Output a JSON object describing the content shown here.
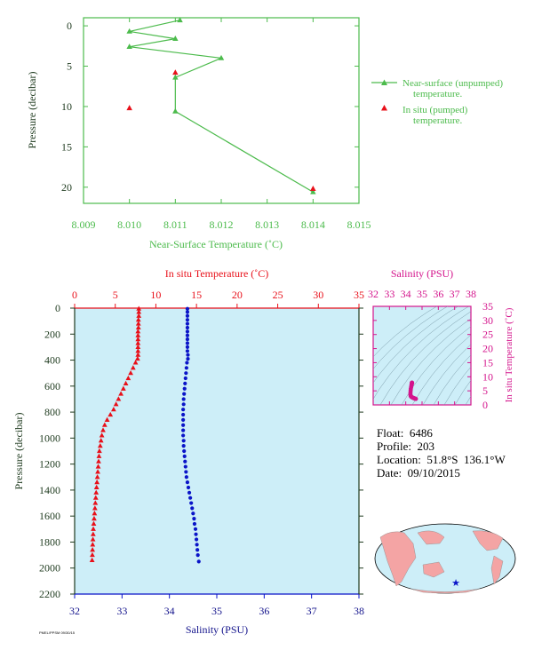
{
  "colors": {
    "green": "#4cbb4c",
    "red": "#e8101a",
    "blue": "#0a14c8",
    "magenta": "#d4148c",
    "axis_dark": "#1e3a1e",
    "bg_light_blue": "#cdeef8",
    "navy": "#14148c"
  },
  "float_info": {
    "float": "Float:  6486",
    "profile": "Profile:  203",
    "location": "Location:  51.8°S  136.1°W",
    "date": "Date:  09/10/2015"
  },
  "credit": "PMEL/PPSM 09/30/15",
  "chart_data": [
    {
      "id": "near-surface",
      "type": "line",
      "xlabel": "Near-Surface Temperature (˚C)",
      "ylabel": "Pressure (decibar)",
      "xlim": [
        8.009,
        8.015
      ],
      "ylim": [
        22,
        -1
      ],
      "xticks": [
        8.009,
        8.01,
        8.011,
        8.012,
        8.013,
        8.014,
        8.015
      ],
      "xtick_labels": [
        "8.009",
        "8.010",
        "8.011",
        "8.012",
        "8.013",
        "8.014",
        "8.015"
      ],
      "yticks": [
        0,
        5,
        10,
        15,
        20
      ],
      "ytick_labels": [
        "0",
        "5",
        "10",
        "15",
        "20"
      ],
      "legend_position": "right",
      "series": [
        {
          "name": "Near-surface (unpumped) temperature.",
          "legend_lines": [
            "Near-surface (unpumped)",
            "temperature."
          ],
          "marker": "triangle",
          "x": [
            8.0111,
            8.01,
            8.011,
            8.01,
            8.012,
            8.011,
            8.011,
            8.014
          ],
          "y": [
            -0.7,
            0.7,
            1.6,
            2.6,
            4.0,
            6.4,
            10.6,
            20.6
          ]
        },
        {
          "name": "In situ (pumped) temperature.",
          "legend_lines": [
            "In situ (pumped)",
            "temperature."
          ],
          "marker": "triangle",
          "x": [
            8.011,
            8.01,
            8.014
          ],
          "y": [
            5.8,
            10.2,
            20.2
          ]
        }
      ]
    },
    {
      "id": "profile",
      "type": "scatter",
      "xlabel_top": "In situ Temperature (˚C)",
      "xlabel_bottom": "Salinity (PSU)",
      "ylabel": "Pressure (decibar)",
      "temp_lim": [
        0,
        35
      ],
      "temp_ticks": [
        0,
        5,
        10,
        15,
        20,
        25,
        30,
        35
      ],
      "temp_tick_labels": [
        "0",
        "5",
        "10",
        "15",
        "20",
        "25",
        "30",
        "35"
      ],
      "sal_lim": [
        32,
        38
      ],
      "sal_ticks": [
        32,
        33,
        34,
        35,
        36,
        37,
        38
      ],
      "sal_tick_labels": [
        "32",
        "33",
        "34",
        "35",
        "36",
        "37",
        "38"
      ],
      "ylim": [
        0,
        2200
      ],
      "yticks": [
        0,
        200,
        400,
        600,
        800,
        1000,
        1200,
        1400,
        1600,
        1800,
        2000,
        2200
      ],
      "ytick_labels": [
        "0",
        "200",
        "400",
        "600",
        "800",
        "1000",
        "1200",
        "1400",
        "1600",
        "1800",
        "2000",
        "2200"
      ],
      "series": [
        {
          "name": "In situ Temperature (˚C)",
          "pressure": [
            5,
            30,
            60,
            90,
            120,
            150,
            180,
            210,
            240,
            270,
            300,
            330,
            360,
            390,
            420,
            460,
            500,
            540,
            580,
            620,
            660,
            700,
            740,
            780,
            820,
            860,
            900,
            940,
            980,
            1020,
            1060,
            1100,
            1140,
            1180,
            1220,
            1260,
            1300,
            1340,
            1380,
            1420,
            1460,
            1500,
            1540,
            1580,
            1620,
            1660,
            1700,
            1740,
            1780,
            1820,
            1860,
            1900,
            1940
          ],
          "values": [
            7.9,
            7.9,
            7.9,
            7.85,
            7.85,
            7.85,
            7.8,
            7.8,
            7.8,
            7.8,
            7.8,
            7.8,
            7.8,
            7.75,
            7.5,
            7.2,
            6.9,
            6.6,
            6.3,
            6.0,
            5.7,
            5.4,
            5.1,
            4.8,
            4.4,
            4.0,
            3.7,
            3.5,
            3.35,
            3.25,
            3.15,
            3.05,
            3.0,
            2.95,
            2.9,
            2.85,
            2.8,
            2.75,
            2.7,
            2.65,
            2.6,
            2.55,
            2.5,
            2.45,
            2.4,
            2.35,
            2.3,
            2.28,
            2.25,
            2.22,
            2.2,
            2.18,
            2.15
          ]
        },
        {
          "name": "Salinity (PSU)",
          "pressure": [
            5,
            30,
            60,
            90,
            120,
            150,
            180,
            210,
            240,
            270,
            300,
            330,
            360,
            390,
            420,
            460,
            500,
            540,
            580,
            620,
            660,
            700,
            740,
            780,
            820,
            860,
            900,
            940,
            980,
            1020,
            1060,
            1100,
            1140,
            1180,
            1220,
            1260,
            1300,
            1340,
            1380,
            1420,
            1460,
            1500,
            1540,
            1580,
            1620,
            1660,
            1700,
            1740,
            1780,
            1820,
            1860,
            1900,
            1950
          ],
          "values": [
            34.38,
            34.38,
            34.38,
            34.38,
            34.38,
            34.38,
            34.38,
            34.38,
            34.38,
            34.38,
            34.38,
            34.38,
            34.39,
            34.39,
            34.37,
            34.36,
            34.35,
            34.34,
            34.33,
            34.32,
            34.31,
            34.3,
            34.3,
            34.29,
            34.29,
            34.29,
            34.29,
            34.29,
            34.29,
            34.3,
            34.3,
            34.31,
            34.32,
            34.33,
            34.34,
            34.35,
            34.36,
            34.38,
            34.4,
            34.42,
            34.44,
            34.46,
            34.48,
            34.5,
            34.52,
            34.53,
            34.55,
            34.56,
            34.57,
            34.58,
            34.59,
            34.6,
            34.62
          ]
        }
      ]
    },
    {
      "id": "ts-diagram",
      "type": "scatter",
      "xlabel": "Salinity (PSU)",
      "ylabel": "In situ Temperature (˚C)",
      "xlim": [
        32,
        38
      ],
      "xticks": [
        32,
        33,
        34,
        35,
        36,
        37,
        38
      ],
      "xtick_labels": [
        "32",
        "33",
        "34",
        "35",
        "36",
        "37",
        "38"
      ],
      "ylim": [
        0,
        35
      ],
      "yticks": [
        0,
        5,
        10,
        15,
        20,
        25,
        30,
        35
      ],
      "ytick_labels": [
        "0",
        "5",
        "10",
        "15",
        "20",
        "25",
        "30",
        "35"
      ],
      "series": [
        {
          "name": "T-S",
          "x": [
            34.38,
            34.38,
            34.38,
            34.39,
            34.37,
            34.36,
            34.35,
            34.33,
            34.31,
            34.3,
            34.29,
            34.29,
            34.3,
            34.32,
            34.34,
            34.37,
            34.42,
            34.46,
            34.5,
            34.54,
            34.58,
            34.62
          ],
          "y": [
            7.9,
            7.85,
            7.8,
            7.75,
            7.5,
            7.2,
            6.9,
            6.3,
            5.7,
            5.1,
            4.4,
            3.7,
            3.25,
            3.0,
            2.9,
            2.75,
            2.6,
            2.5,
            2.4,
            2.3,
            2.2,
            2.15
          ]
        }
      ]
    }
  ]
}
